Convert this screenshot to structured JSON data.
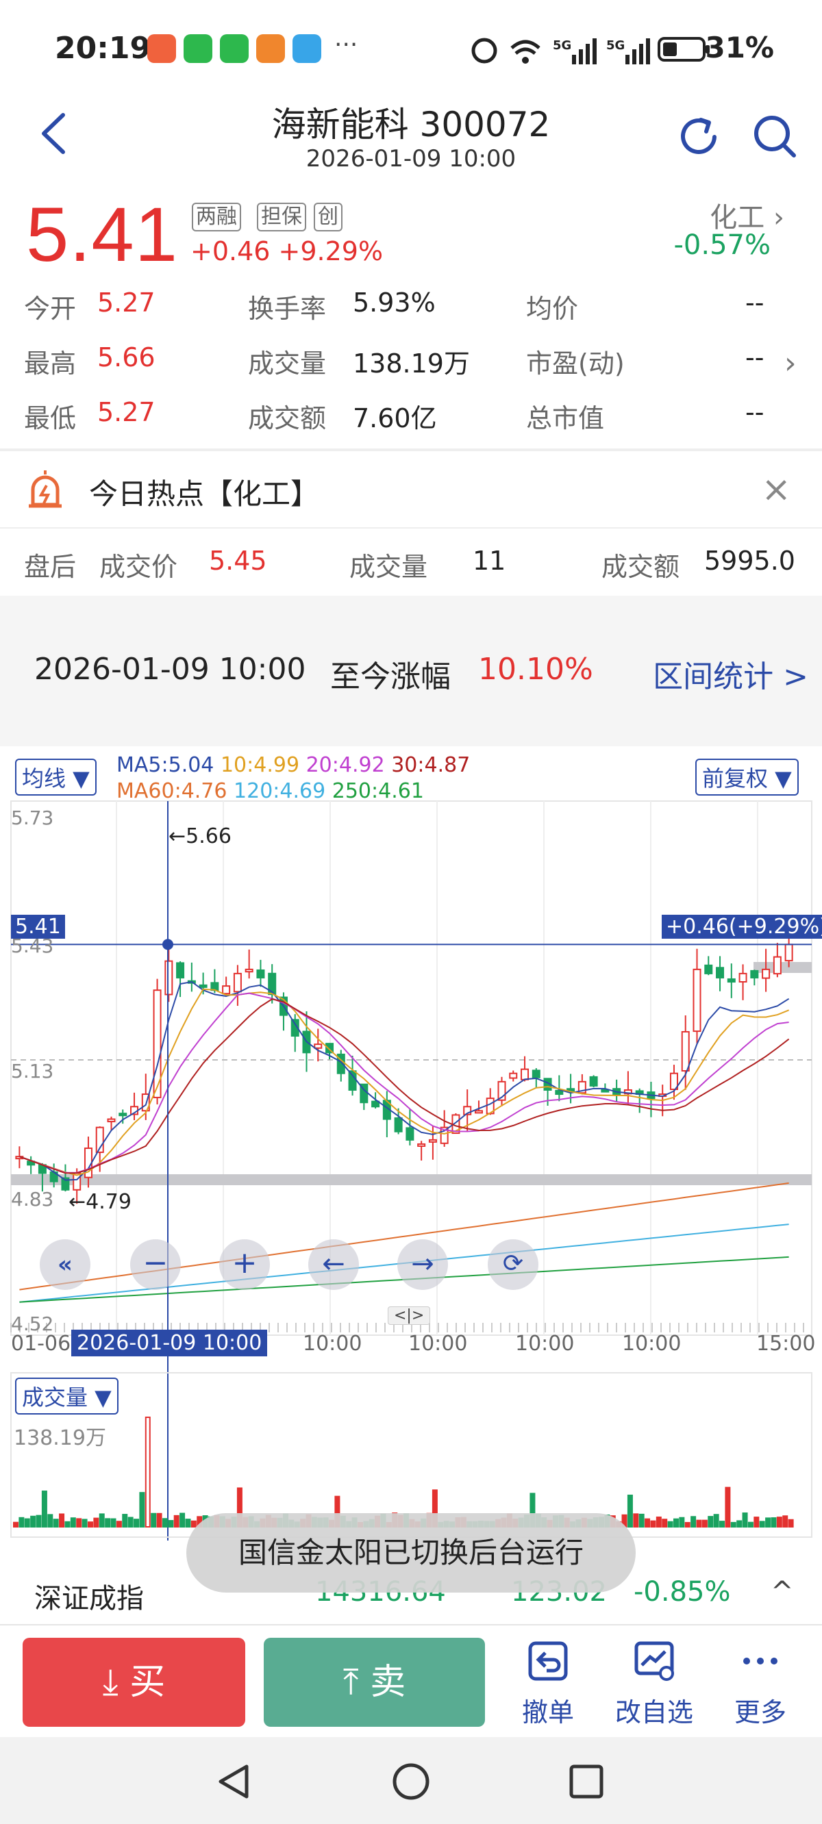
{
  "status_bar": {
    "time": "20:19",
    "dots": "···",
    "network": "5G",
    "battery": "31%"
  },
  "header": {
    "title": "海新能科 300072",
    "datetime": "2026-01-09 10:00"
  },
  "quote": {
    "price": "5.41",
    "tags": [
      "两融",
      "担保",
      "创"
    ],
    "change": "+0.46 +9.29%",
    "industry": "化工",
    "industry_change": "-0.57%",
    "rows": [
      {
        "l1": "今开",
        "v1": "5.27",
        "l2": "换手率",
        "v2": "5.93%",
        "l3": "均价",
        "v3": "--"
      },
      {
        "l1": "最高",
        "v1": "5.66",
        "l2": "成交量",
        "v2": "138.19万",
        "l3": "市盈(动)",
        "v3": "--"
      },
      {
        "l1": "最低",
        "v1": "5.27",
        "l2": "成交额",
        "v2": "7.60亿",
        "l3": "总市值",
        "v3": "--"
      }
    ]
  },
  "hot_topic": {
    "text": "今日热点【化工】",
    "close": "×"
  },
  "after_hours": {
    "label": "盘后",
    "price_label": "成交价",
    "price": "5.45",
    "vol_label": "成交量",
    "vol": "11",
    "amt_label": "成交额",
    "amt": "5995.0"
  },
  "range_stats": {
    "date": "2026-01-09 10:00",
    "label": "至今涨幅",
    "value": "10.10%",
    "link": "区间统计 >"
  },
  "chart": {
    "ma_button": "均线 ▼",
    "adjust_button": "前复权 ▼",
    "ma_line1": [
      {
        "text": "MA5:5.04",
        "color": "#2b4aa7"
      },
      {
        "text": "10:4.99",
        "color": "#e0a020"
      },
      {
        "text": "20:4.92",
        "color": "#c040d0"
      },
      {
        "text": "30:4.87",
        "color": "#b02020"
      }
    ],
    "ma_line2": [
      {
        "text": "MA60:4.76",
        "color": "#e07030"
      },
      {
        "text": "120:4.69",
        "color": "#40b0e0"
      },
      {
        "text": "250:4.61",
        "color": "#20a040"
      }
    ],
    "y_labels": [
      "5.73",
      "5.43",
      "5.13",
      "4.83",
      "4.52"
    ],
    "crosshair_price": "5.41",
    "crosshair_change": "+0.46(+9.29%)",
    "high_marker": "←5.66",
    "low_marker": "←4.79",
    "x_labels": [
      "01-06",
      "10:00",
      "10:00",
      "10:00",
      "10:00",
      "15:00"
    ],
    "crosshair_date": "2026-01-09 10:00",
    "drag_handle": "<|>",
    "volume_button": "成交量 ▼",
    "volume_value": "138.19万"
  },
  "chart_data": {
    "type": "candlestick",
    "ylim": [
      4.52,
      5.73
    ],
    "crosshair": {
      "price": 5.41,
      "label": "2026-01-09 10:00"
    },
    "marked_high": 5.66,
    "marked_low": 4.79,
    "ma": {
      "MA5": 5.04,
      "MA10": 4.99,
      "MA20": 4.92,
      "MA30": 4.87,
      "MA60": 4.76,
      "MA120": 4.69,
      "MA250": 4.61
    },
    "volume_label": "138.19万"
  },
  "bottom_index": {
    "name": "深证成指",
    "value": "14316.64",
    "change": "123.02",
    "pct": "-0.85%",
    "arrow": "^"
  },
  "toast": "国信金太阳已切换后台运行",
  "actions": {
    "buy": "买",
    "sell": "卖",
    "cancel": "撤单",
    "edit_watch": "改自选",
    "more": "更多"
  }
}
